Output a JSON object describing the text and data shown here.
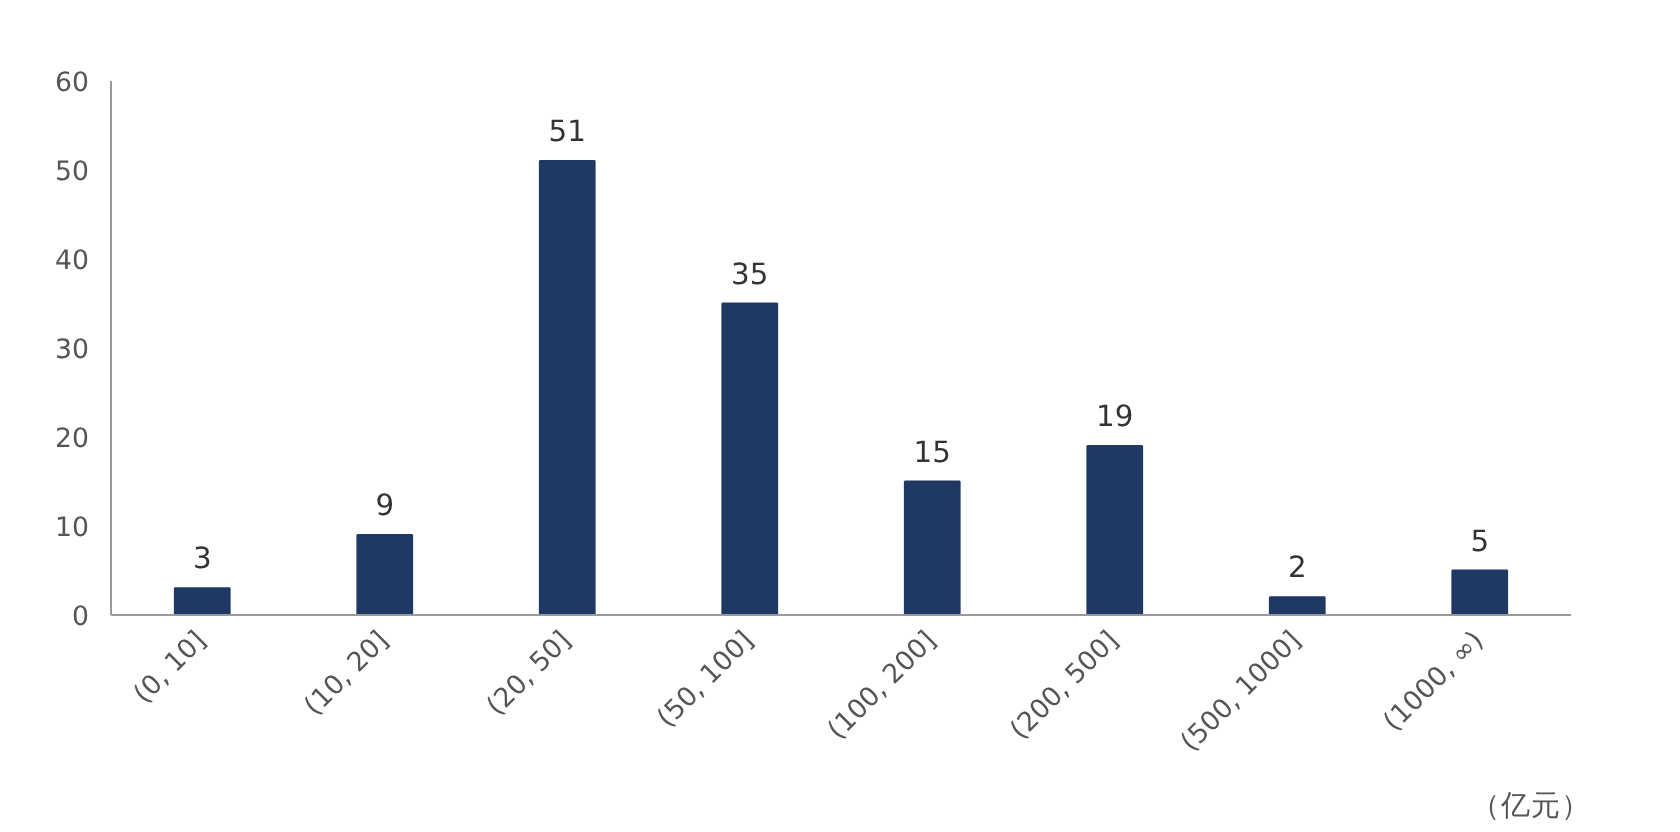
{
  "chart_data": {
    "type": "bar",
    "categories": [
      "(0, 10]",
      "(10, 20]",
      "(20, 50]",
      "(50, 100]",
      "(100, 200]",
      "(200, 500]",
      "(500, 1000]",
      "(1000, ∞)"
    ],
    "values": [
      3,
      9,
      51,
      35,
      15,
      19,
      2,
      5
    ],
    "color": "#1f3864",
    "ylim": [
      0,
      60
    ],
    "yticks": [
      0,
      10,
      20,
      30,
      40,
      50,
      60
    ],
    "grid": false,
    "data_labels": true,
    "annotations": [
      "（亿元）"
    ]
  }
}
